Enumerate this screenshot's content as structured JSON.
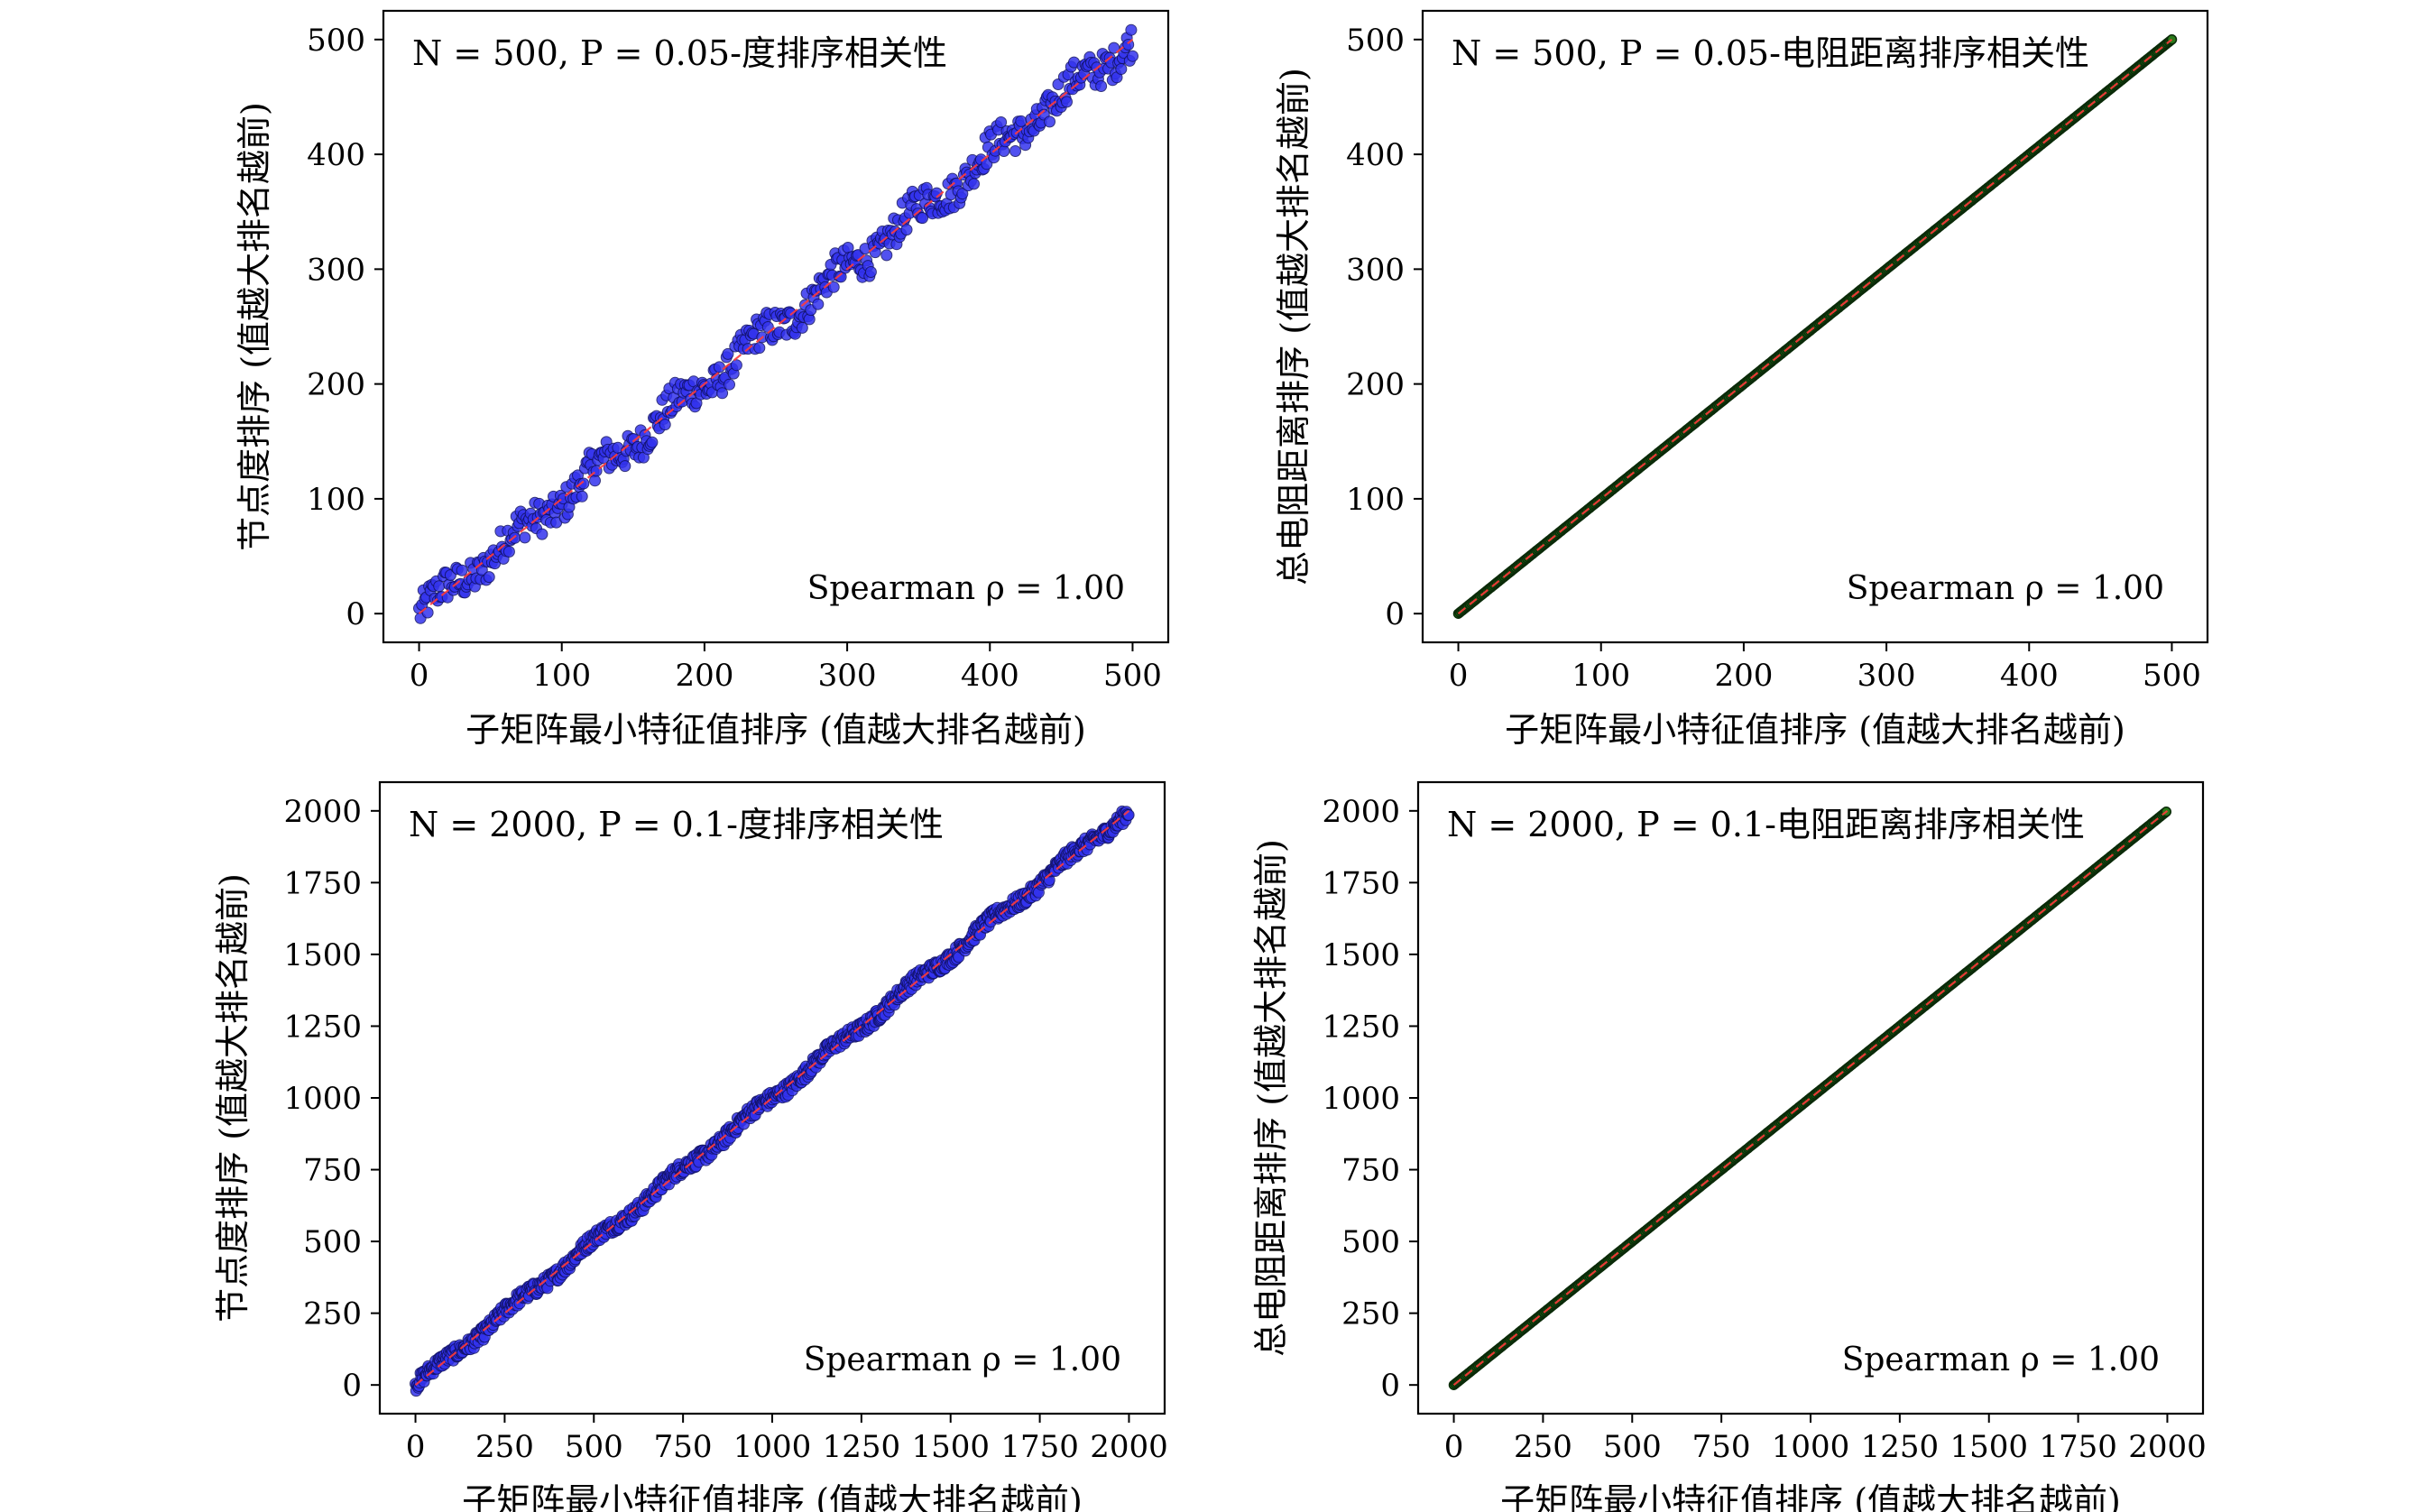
{
  "chart_data": [
    {
      "type": "scatter",
      "title": "N = 500, P = 0.05-度排序相关性",
      "xlabel": "子矩阵最小特征值排序 (值越大排名越前)",
      "ylabel": "节点度排序 (值越大排名越前)",
      "annotation": "Spearman ρ = 1.00",
      "xlim": [
        -25,
        525
      ],
      "ylim": [
        -25,
        525
      ],
      "xticks": [
        0,
        100,
        200,
        300,
        400,
        500
      ],
      "yticks": [
        0,
        100,
        200,
        300,
        400,
        500
      ],
      "point_color": "#3333ee",
      "series": [
        {
          "x_range": [
            0,
            500
          ],
          "y_range": [
            0,
            500
          ],
          "n_points": 500
        }
      ],
      "reference_line": "y = x"
    },
    {
      "type": "scatter",
      "title": "N = 500, P = 0.05-电阻距离排序相关性",
      "xlabel": "子矩阵最小特征值排序 (值越大排名越前)",
      "ylabel": "总电阻距离排序 (值越大排名越前)",
      "annotation": "Spearman ρ = 1.00",
      "xlim": [
        -25,
        525
      ],
      "ylim": [
        -25,
        525
      ],
      "xticks": [
        0,
        100,
        200,
        300,
        400,
        500
      ],
      "yticks": [
        0,
        100,
        200,
        300,
        400,
        500
      ],
      "point_color": "#2a7a1a",
      "series": [
        {
          "x_range": [
            0,
            500
          ],
          "y_range": [
            0,
            500
          ],
          "n_points": 500
        }
      ],
      "reference_line": "y = x"
    },
    {
      "type": "scatter",
      "title": "N = 2000, P = 0.1-度排序相关性",
      "xlabel": "子矩阵最小特征值排序 (值越大排名越前)",
      "ylabel": "节点度排序 (值越大排名越前)",
      "annotation": "Spearman ρ = 1.00",
      "xlim": [
        -100,
        2100
      ],
      "ylim": [
        -100,
        2100
      ],
      "xticks": [
        0,
        250,
        500,
        750,
        1000,
        1250,
        1500,
        1750,
        2000
      ],
      "yticks": [
        0,
        250,
        500,
        750,
        1000,
        1250,
        1500,
        1750,
        2000
      ],
      "point_color": "#3333ee",
      "series": [
        {
          "x_range": [
            0,
            2000
          ],
          "y_range": [
            0,
            2000
          ],
          "n_points": 2000
        }
      ],
      "reference_line": "y = x"
    },
    {
      "type": "scatter",
      "title": "N = 2000, P = 0.1-电阻距离排序相关性",
      "xlabel": "子矩阵最小特征值排序 (值越大排名越前)",
      "ylabel": "总电阻距离排序 (值越大排名越前)",
      "annotation": "Spearman ρ = 1.00",
      "xlim": [
        -100,
        2100
      ],
      "ylim": [
        -100,
        2100
      ],
      "xticks": [
        0,
        250,
        500,
        750,
        1000,
        1250,
        1500,
        1750,
        2000
      ],
      "yticks": [
        0,
        250,
        500,
        750,
        1000,
        1250,
        1500,
        1750,
        2000
      ],
      "point_color": "#2a7a1a",
      "series": [
        {
          "x_range": [
            0,
            2000
          ],
          "y_range": [
            0,
            2000
          ],
          "n_points": 2000
        }
      ],
      "reference_line": "y = x"
    }
  ]
}
